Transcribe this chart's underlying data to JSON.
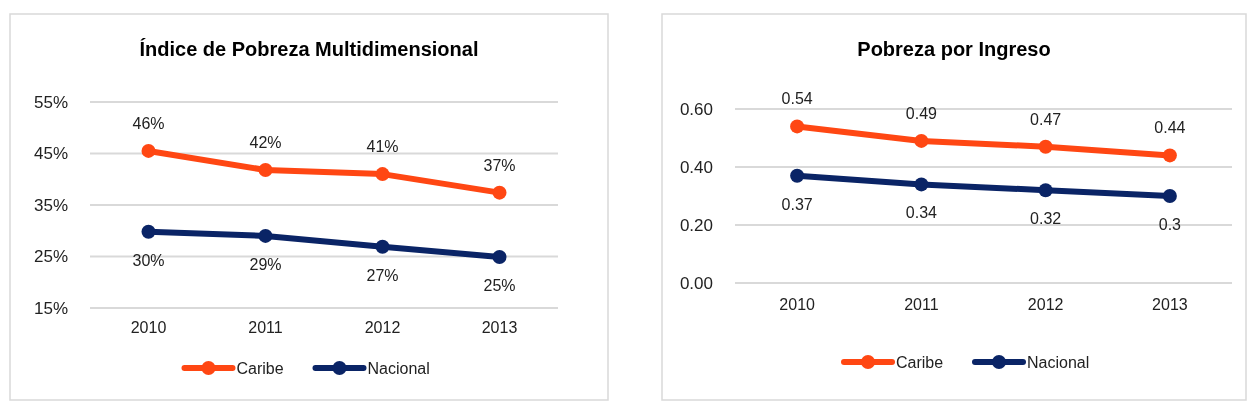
{
  "chart_data": [
    {
      "type": "line",
      "title": "Índice de Pobreza Multidimensional",
      "categories": [
        "2010",
        "2011",
        "2012",
        "2013"
      ],
      "series": [
        {
          "name": "Caribe",
          "color": "#ff4713",
          "values": [
            45.5,
            41.8,
            41.0,
            37.4
          ],
          "value_labels": [
            "46%",
            "42%",
            "41%",
            "37%"
          ]
        },
        {
          "name": "Nacional",
          "color": "#0a2466",
          "values": [
            29.8,
            29.0,
            26.9,
            24.9
          ],
          "value_labels": [
            "30%",
            "29%",
            "27%",
            "25%"
          ]
        }
      ],
      "ylim": [
        15,
        55
      ],
      "yticks": [
        {
          "value": 15,
          "label": "15%"
        },
        {
          "value": 25,
          "label": "25%"
        },
        {
          "value": 35,
          "label": "35%"
        },
        {
          "value": 45,
          "label": "45%"
        },
        {
          "value": 55,
          "label": "55%"
        }
      ],
      "grid": "y",
      "legend": "bottom",
      "marker": "circle",
      "line_style": "solid"
    },
    {
      "type": "line",
      "title": "Pobreza por Ingreso",
      "categories": [
        "2010",
        "2011",
        "2012",
        "2013"
      ],
      "series": [
        {
          "name": "Caribe",
          "color": "#ff4713",
          "values": [
            0.54,
            0.49,
            0.47,
            0.44
          ]
        },
        {
          "name": "Nacional",
          "color": "#0a2466",
          "values": [
            0.37,
            0.34,
            0.32,
            0.3
          ]
        }
      ],
      "ylim": [
        0,
        0.6
      ],
      "yticks": [
        {
          "value": 0,
          "label": "0.00"
        },
        {
          "value": 0.2,
          "label": "0.20"
        },
        {
          "value": 0.4,
          "label": "0.40"
        },
        {
          "value": 0.6,
          "label": "0.60"
        }
      ],
      "grid": "y",
      "legend": "bottom",
      "marker": "circle",
      "line_style": "solid",
      "data_labels": true
    }
  ]
}
